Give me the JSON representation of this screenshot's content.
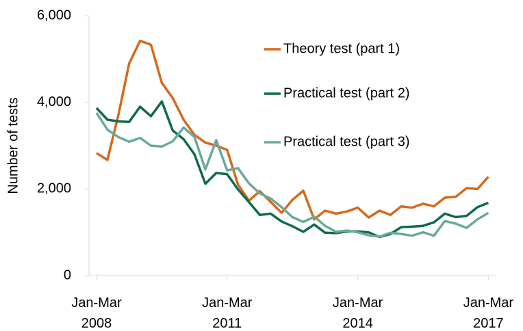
{
  "chart_data": {
    "type": "line",
    "y_label": "Number of tests",
    "categories": [
      "Jan-Mar 2008",
      null,
      null,
      null,
      null,
      null,
      null,
      null,
      null,
      null,
      null,
      null,
      "Jan-Mar 2011",
      null,
      null,
      null,
      null,
      null,
      null,
      null,
      null,
      null,
      null,
      null,
      "Jan-Mar 2014",
      null,
      null,
      null,
      null,
      null,
      null,
      null,
      null,
      null,
      null,
      null,
      "Jan-Mar 2017"
    ],
    "series": [
      {
        "name": "Theory test (part 1)",
        "color": "#d4691f",
        "values": [
          2830,
          2670,
          3700,
          4900,
          5420,
          5330,
          4450,
          4100,
          3600,
          3250,
          3070,
          3000,
          2900,
          2100,
          1730,
          1950,
          1700,
          1450,
          1750,
          1960,
          1300,
          1500,
          1430,
          1480,
          1570,
          1340,
          1500,
          1400,
          1600,
          1570,
          1660,
          1600,
          1800,
          1820,
          2020,
          2000,
          2280
        ]
      },
      {
        "name": "Practical test (part 2)",
        "color": "#0e6b4e",
        "values": [
          3870,
          3600,
          3560,
          3550,
          3900,
          3680,
          4020,
          3350,
          3150,
          2800,
          2120,
          2370,
          2340,
          1990,
          1700,
          1400,
          1430,
          1250,
          1140,
          1010,
          1180,
          990,
          980,
          1020,
          1020,
          1000,
          890,
          960,
          1120,
          1130,
          1150,
          1230,
          1430,
          1350,
          1380,
          1580,
          1680
        ]
      },
      {
        "name": "Practical test (part 3)",
        "color": "#6aa99b",
        "values": [
          3760,
          3370,
          3200,
          3090,
          3180,
          3000,
          2980,
          3100,
          3420,
          3200,
          2450,
          3130,
          2430,
          2480,
          2130,
          1900,
          1780,
          1580,
          1350,
          1240,
          1360,
          1150,
          1010,
          1040,
          1000,
          930,
          900,
          990,
          960,
          920,
          1000,
          920,
          1260,
          1200,
          1100,
          1300,
          1450
        ]
      }
    ],
    "ylim": [
      0,
      6000
    ],
    "yticks": [
      0,
      {
        "value": 2000,
        "label": "2,000"
      },
      {
        "value": 4000,
        "label": "4,000"
      },
      {
        "value": 6000,
        "label": "6,000"
      }
    ],
    "grid": false
  }
}
